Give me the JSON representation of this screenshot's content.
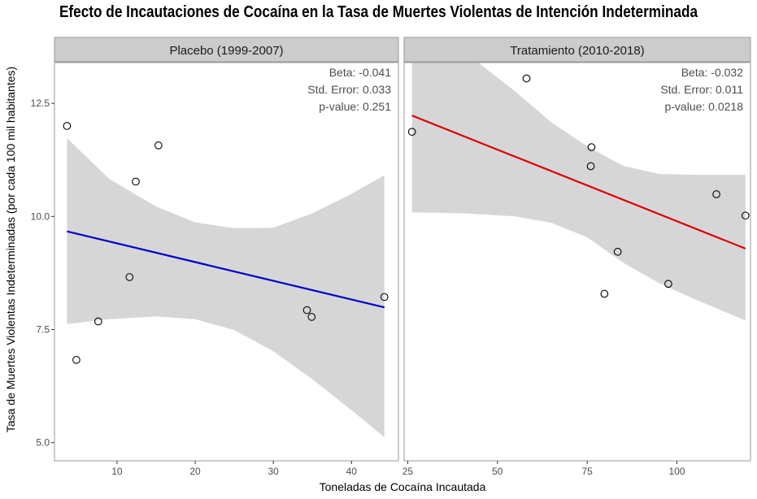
{
  "title": "Efecto de Incautaciones de Cocaína en la Tasa de Muertes Violentas de Intención Indeterminada",
  "xlabel": "Toneladas de Cocaína Incautada",
  "ylabel": "Tasa de Muertes Violentas Indeterminadas (por cada 100 mil habitantes)",
  "colors": {
    "placebo_line": "#0000cc",
    "treatment_line": "#dd0000",
    "ribbon": "#d6d6d6",
    "strip": "#cccccc"
  },
  "chart_data": [
    {
      "type": "scatter",
      "panel": "Placebo (1999-2007)",
      "stats": [
        {
          "label": "Beta:",
          "value": "-0.041"
        },
        {
          "label": "Std. Error:",
          "value": "0.033"
        },
        {
          "label": "p-value:",
          "value": "0.251"
        }
      ],
      "xlim": [
        2,
        46
      ],
      "ylim": [
        4.6,
        13.4
      ],
      "xticks": [
        10,
        20,
        30,
        40
      ],
      "yticks": [
        5.0,
        7.5,
        10.0,
        12.5
      ],
      "ytick_labels": [
        "5.0",
        "7.5",
        "10.0",
        "12.5"
      ],
      "points": [
        {
          "x": 3.6,
          "y": 12.0
        },
        {
          "x": 4.8,
          "y": 6.83
        },
        {
          "x": 7.6,
          "y": 7.68
        },
        {
          "x": 11.6,
          "y": 8.66
        },
        {
          "x": 12.4,
          "y": 10.77
        },
        {
          "x": 15.3,
          "y": 11.57
        },
        {
          "x": 34.3,
          "y": 7.93
        },
        {
          "x": 34.9,
          "y": 7.78
        },
        {
          "x": 44.2,
          "y": 8.22
        }
      ],
      "fit_line": {
        "x": [
          3.6,
          44.2
        ],
        "y": [
          9.67,
          7.99
        ]
      },
      "ribbon": {
        "x": [
          3.6,
          9,
          15,
          20,
          25,
          30,
          35,
          40,
          44.2
        ],
        "lower": [
          7.62,
          7.73,
          7.79,
          7.73,
          7.49,
          7.02,
          6.4,
          5.72,
          5.12
        ],
        "upper": [
          11.73,
          10.83,
          10.22,
          9.87,
          9.74,
          9.75,
          10.07,
          10.5,
          10.91
        ]
      },
      "ribbon_color": "#d6d6d6",
      "line_color": "#0000cc"
    },
    {
      "type": "scatter",
      "panel": "Tratamiento (2010-2018)",
      "stats": [
        {
          "label": "Beta:",
          "value": "-0.032"
        },
        {
          "label": "Std. Error:",
          "value": "0.011"
        },
        {
          "label": "p-value:",
          "value": "0.0218"
        }
      ],
      "xlim": [
        24,
        120.5
      ],
      "ylim": [
        4.6,
        13.4
      ],
      "xticks": [
        25,
        50,
        75,
        100
      ],
      "points": [
        {
          "x": 26.2,
          "y": 11.87
        },
        {
          "x": 58.1,
          "y": 13.05
        },
        {
          "x": 76.2,
          "y": 11.53
        },
        {
          "x": 76.0,
          "y": 11.11
        },
        {
          "x": 83.5,
          "y": 9.22
        },
        {
          "x": 79.8,
          "y": 8.29
        },
        {
          "x": 97.6,
          "y": 8.51
        },
        {
          "x": 111.0,
          "y": 10.49
        },
        {
          "x": 119.1,
          "y": 10.02
        }
      ],
      "fit_line": {
        "x": [
          26.2,
          119.1
        ],
        "y": [
          12.23,
          9.29
        ]
      },
      "ribbon": {
        "x": [
          26.2,
          40,
          55,
          65,
          75,
          85,
          95,
          105,
          119.1
        ],
        "lower": [
          10.09,
          10.07,
          10.0,
          9.86,
          9.54,
          8.98,
          8.53,
          8.17,
          7.7
        ],
        "upper": [
          14.35,
          13.69,
          12.76,
          12.08,
          11.55,
          11.12,
          10.94,
          10.92,
          10.92
        ]
      },
      "ribbon_color": "#d6d6d6",
      "line_color": "#dd0000"
    }
  ]
}
